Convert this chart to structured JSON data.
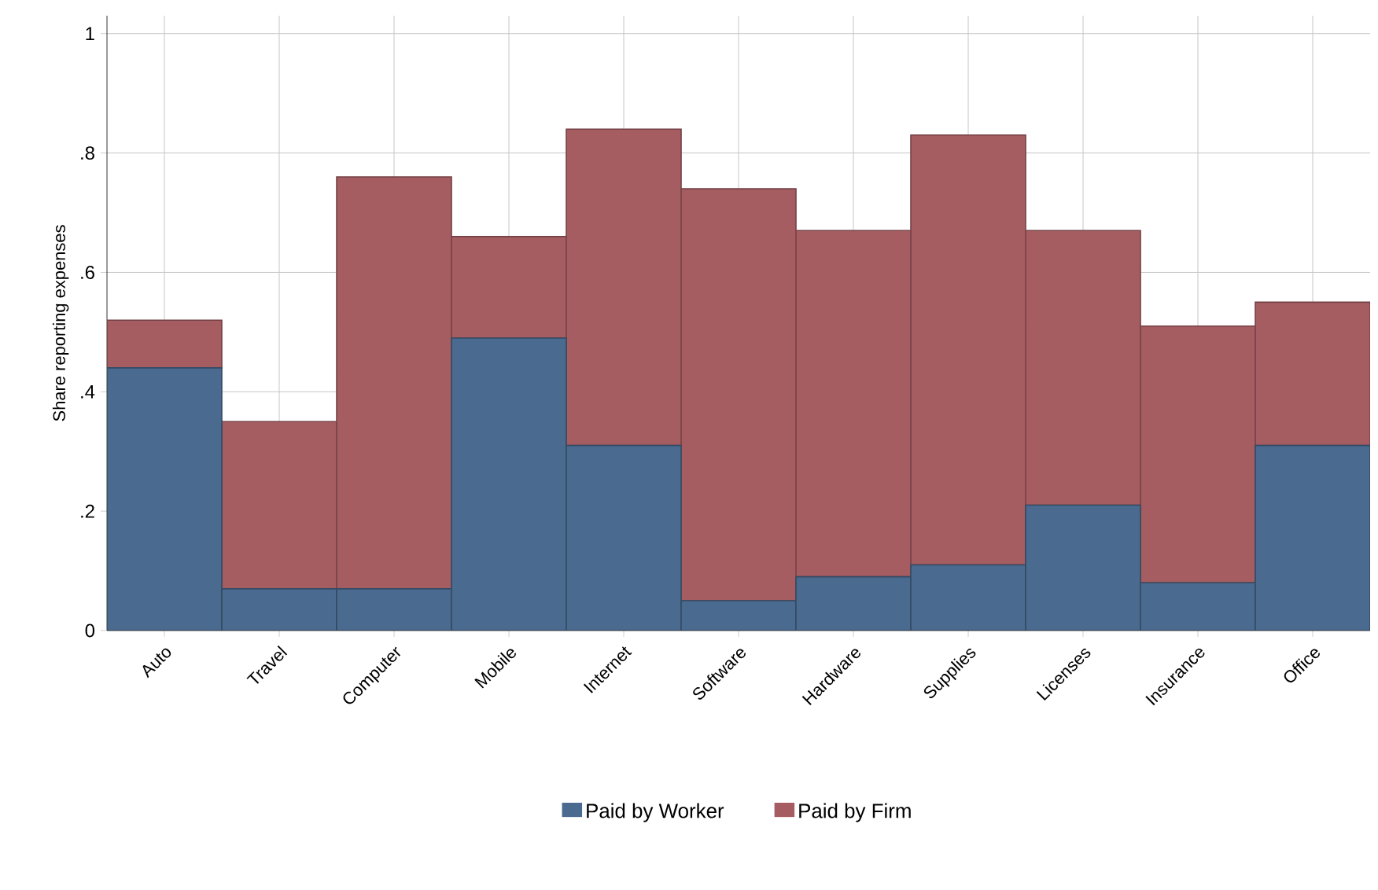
{
  "chart_data": {
    "type": "bar",
    "stacked": true,
    "ylabel": "Share reporting expenses",
    "categories": [
      "Auto",
      "Travel",
      "Computer",
      "Mobile",
      "Internet",
      "Software",
      "Hardware",
      "Supplies",
      "Licenses",
      "Insurance",
      "Office"
    ],
    "series": [
      {
        "name": "Paid by Worker",
        "color": "#4a6b8f",
        "values": [
          0.44,
          0.07,
          0.07,
          0.49,
          0.31,
          0.05,
          0.09,
          0.11,
          0.21,
          0.08,
          0.31
        ]
      },
      {
        "name": "Paid by Firm",
        "color": "#a65d62",
        "values": [
          0.08,
          0.28,
          0.69,
          0.17,
          0.53,
          0.69,
          0.58,
          0.72,
          0.46,
          0.43,
          0.24
        ]
      }
    ],
    "ylim": [
      0,
      1.03
    ],
    "yticks": [
      0,
      {
        "value": 0.2,
        "label": ".2"
      },
      {
        "value": 0.4,
        "label": ".4"
      },
      {
        "value": 0.6,
        "label": ".6"
      },
      {
        "value": 0.8,
        "label": ".8"
      },
      1
    ],
    "grid": true,
    "legend": "bottom"
  }
}
